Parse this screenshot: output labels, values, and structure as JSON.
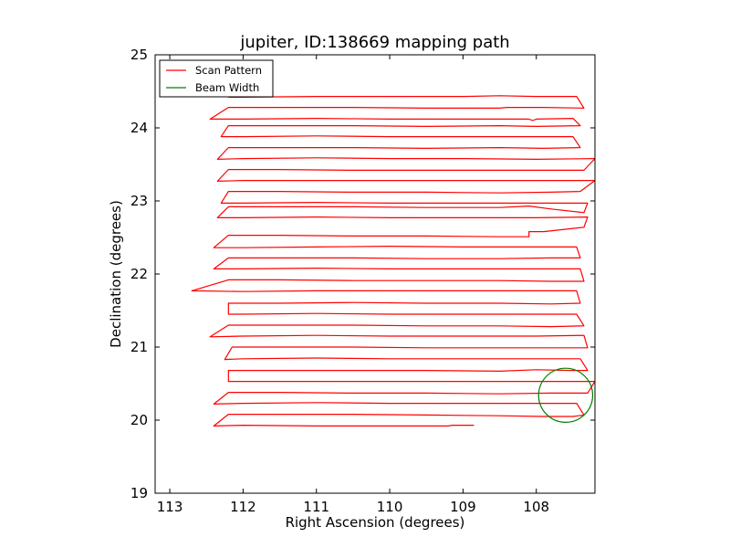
{
  "chart_data": {
    "type": "line",
    "title": "jupiter, ID:138669 mapping path",
    "xlabel": "Right Ascension (degrees)",
    "ylabel": "Declination (degrees)",
    "xlim": [
      113.2,
      107.2
    ],
    "ylim": [
      19,
      25
    ],
    "x_axis_reversed": true,
    "x_ticks": [
      113,
      112,
      111,
      110,
      109,
      108
    ],
    "y_ticks": [
      19,
      20,
      21,
      22,
      23,
      24,
      25
    ],
    "x_tick_labels": [
      "113",
      "112",
      "111",
      "110",
      "109",
      "108"
    ],
    "y_tick_labels": [
      "19",
      "20",
      "21",
      "22",
      "23",
      "24",
      "25"
    ],
    "grid": false,
    "legend_position": "top-left",
    "series": [
      {
        "name": "Scan Pattern",
        "color": "#ff0000",
        "points": [
          [
            108.85,
            19.93
          ],
          [
            109.15,
            19.93
          ],
          [
            109.2,
            19.92
          ],
          [
            109.4,
            19.92
          ],
          [
            110.0,
            19.92
          ],
          [
            111.0,
            19.92
          ],
          [
            112.0,
            19.93
          ],
          [
            112.4,
            19.92
          ],
          [
            112.2,
            20.08
          ],
          [
            111.5,
            20.08
          ],
          [
            110.5,
            20.08
          ],
          [
            109.5,
            20.07
          ],
          [
            108.5,
            20.06
          ],
          [
            107.9,
            20.05
          ],
          [
            107.5,
            20.05
          ],
          [
            107.35,
            20.07
          ],
          [
            107.45,
            20.23
          ],
          [
            108.0,
            20.23
          ],
          [
            109.0,
            20.23
          ],
          [
            110.0,
            20.23
          ],
          [
            111.0,
            20.24
          ],
          [
            112.0,
            20.23
          ],
          [
            112.4,
            20.22
          ],
          [
            112.2,
            20.38
          ],
          [
            111.5,
            20.38
          ],
          [
            110.5,
            20.37
          ],
          [
            109.5,
            20.37
          ],
          [
            108.5,
            20.36
          ],
          [
            107.8,
            20.37
          ],
          [
            107.3,
            20.37
          ],
          [
            107.2,
            20.53
          ],
          [
            108.0,
            20.53
          ],
          [
            109.0,
            20.53
          ],
          [
            110.0,
            20.53
          ],
          [
            111.0,
            20.53
          ],
          [
            112.0,
            20.53
          ],
          [
            112.2,
            20.53
          ],
          [
            112.2,
            20.68
          ],
          [
            111.5,
            20.68
          ],
          [
            110.5,
            20.68
          ],
          [
            109.5,
            20.68
          ],
          [
            108.5,
            20.67
          ],
          [
            108.0,
            20.69
          ],
          [
            107.5,
            20.68
          ],
          [
            107.3,
            20.68
          ],
          [
            107.4,
            20.84
          ],
          [
            108.0,
            20.84
          ],
          [
            109.0,
            20.84
          ],
          [
            110.0,
            20.84
          ],
          [
            111.0,
            20.85
          ],
          [
            112.0,
            20.84
          ],
          [
            112.25,
            20.83
          ],
          [
            112.15,
            21.0
          ],
          [
            111.5,
            21.0
          ],
          [
            110.5,
            21.0
          ],
          [
            109.5,
            20.99
          ],
          [
            108.5,
            20.99
          ],
          [
            108.0,
            20.99
          ],
          [
            107.3,
            20.99
          ],
          [
            107.35,
            21.16
          ],
          [
            108.0,
            21.15
          ],
          [
            109.0,
            21.15
          ],
          [
            110.0,
            21.15
          ],
          [
            111.0,
            21.16
          ],
          [
            112.0,
            21.15
          ],
          [
            112.45,
            21.14
          ],
          [
            112.2,
            21.3
          ],
          [
            111.5,
            21.3
          ],
          [
            110.5,
            21.3
          ],
          [
            109.5,
            21.29
          ],
          [
            108.5,
            21.29
          ],
          [
            107.8,
            21.28
          ],
          [
            107.35,
            21.29
          ],
          [
            107.45,
            21.45
          ],
          [
            108.0,
            21.45
          ],
          [
            109.0,
            21.45
          ],
          [
            110.0,
            21.45
          ],
          [
            111.0,
            21.46
          ],
          [
            112.0,
            21.45
          ],
          [
            112.2,
            21.45
          ],
          [
            112.2,
            21.6
          ],
          [
            111.5,
            21.6
          ],
          [
            110.5,
            21.61
          ],
          [
            109.5,
            21.6
          ],
          [
            108.5,
            21.6
          ],
          [
            107.8,
            21.59
          ],
          [
            107.4,
            21.6
          ],
          [
            107.45,
            21.77
          ],
          [
            108.0,
            21.77
          ],
          [
            109.0,
            21.77
          ],
          [
            110.0,
            21.77
          ],
          [
            111.0,
            21.77
          ],
          [
            112.0,
            21.76
          ],
          [
            112.7,
            21.77
          ],
          [
            112.2,
            21.92
          ],
          [
            111.5,
            21.92
          ],
          [
            110.5,
            21.91
          ],
          [
            109.5,
            21.91
          ],
          [
            108.5,
            21.91
          ],
          [
            107.8,
            21.9
          ],
          [
            107.35,
            21.9
          ],
          [
            107.4,
            22.07
          ],
          [
            108.0,
            22.07
          ],
          [
            109.0,
            22.07
          ],
          [
            110.0,
            22.07
          ],
          [
            111.0,
            22.08
          ],
          [
            112.0,
            22.07
          ],
          [
            112.4,
            22.07
          ],
          [
            112.2,
            22.22
          ],
          [
            111.5,
            22.22
          ],
          [
            110.5,
            22.22
          ],
          [
            109.5,
            22.21
          ],
          [
            108.5,
            22.21
          ],
          [
            107.8,
            22.22
          ],
          [
            107.4,
            22.22
          ],
          [
            107.45,
            22.37
          ],
          [
            108.0,
            22.37
          ],
          [
            109.0,
            22.37
          ],
          [
            110.0,
            22.38
          ],
          [
            111.0,
            22.37
          ],
          [
            112.0,
            22.36
          ],
          [
            112.4,
            22.36
          ],
          [
            112.2,
            22.53
          ],
          [
            111.5,
            22.53
          ],
          [
            110.5,
            22.52
          ],
          [
            109.5,
            22.52
          ],
          [
            108.5,
            22.51
          ],
          [
            108.1,
            22.51
          ],
          [
            108.1,
            22.58
          ],
          [
            107.9,
            22.58
          ],
          [
            107.35,
            22.64
          ],
          [
            107.3,
            22.78
          ],
          [
            108.0,
            22.77
          ],
          [
            109.0,
            22.77
          ],
          [
            110.0,
            22.77
          ],
          [
            111.0,
            22.78
          ],
          [
            112.0,
            22.77
          ],
          [
            112.35,
            22.77
          ],
          [
            112.2,
            22.92
          ],
          [
            111.5,
            22.92
          ],
          [
            110.5,
            22.92
          ],
          [
            109.5,
            22.91
          ],
          [
            108.5,
            22.91
          ],
          [
            108.1,
            22.93
          ],
          [
            107.8,
            22.89
          ],
          [
            107.35,
            22.84
          ],
          [
            107.3,
            22.97
          ],
          [
            108.0,
            22.97
          ],
          [
            109.0,
            22.97
          ],
          [
            110.0,
            22.97
          ],
          [
            111.0,
            22.98
          ],
          [
            112.0,
            22.97
          ],
          [
            112.3,
            22.97
          ],
          [
            112.2,
            23.13
          ],
          [
            111.5,
            23.13
          ],
          [
            110.5,
            23.12
          ],
          [
            109.5,
            23.12
          ],
          [
            108.5,
            23.11
          ],
          [
            107.8,
            23.12
          ],
          [
            107.4,
            23.13
          ],
          [
            107.2,
            23.28
          ],
          [
            108.0,
            23.28
          ],
          [
            109.0,
            23.28
          ],
          [
            110.0,
            23.28
          ],
          [
            111.0,
            23.28
          ],
          [
            112.0,
            23.28
          ],
          [
            112.35,
            23.27
          ],
          [
            112.2,
            23.43
          ],
          [
            111.5,
            23.43
          ],
          [
            110.5,
            23.42
          ],
          [
            109.5,
            23.42
          ],
          [
            108.5,
            23.42
          ],
          [
            107.8,
            23.42
          ],
          [
            107.35,
            23.42
          ],
          [
            107.2,
            23.58
          ],
          [
            108.0,
            23.57
          ],
          [
            109.0,
            23.58
          ],
          [
            110.0,
            23.58
          ],
          [
            111.0,
            23.59
          ],
          [
            112.0,
            23.58
          ],
          [
            112.35,
            23.57
          ],
          [
            112.2,
            23.73
          ],
          [
            111.5,
            23.73
          ],
          [
            110.5,
            23.73
          ],
          [
            109.5,
            23.72
          ],
          [
            108.5,
            23.73
          ],
          [
            107.9,
            23.72
          ],
          [
            107.4,
            23.73
          ],
          [
            107.5,
            23.88
          ],
          [
            108.0,
            23.88
          ],
          [
            109.0,
            23.88
          ],
          [
            110.0,
            23.88
          ],
          [
            111.0,
            23.89
          ],
          [
            112.0,
            23.88
          ],
          [
            112.3,
            23.88
          ],
          [
            112.2,
            24.03
          ],
          [
            111.5,
            24.03
          ],
          [
            110.5,
            24.03
          ],
          [
            109.5,
            24.02
          ],
          [
            108.5,
            24.03
          ],
          [
            108.0,
            24.02
          ],
          [
            107.4,
            24.03
          ],
          [
            107.5,
            24.13
          ],
          [
            108.0,
            24.12
          ],
          [
            108.05,
            24.1
          ],
          [
            108.1,
            24.12
          ],
          [
            109.0,
            24.12
          ],
          [
            110.0,
            24.12
          ],
          [
            111.0,
            24.13
          ],
          [
            112.0,
            24.12
          ],
          [
            112.45,
            24.12
          ],
          [
            112.2,
            24.28
          ],
          [
            111.5,
            24.28
          ],
          [
            110.5,
            24.28
          ],
          [
            109.5,
            24.27
          ],
          [
            108.5,
            24.27
          ],
          [
            108.4,
            24.28
          ],
          [
            107.9,
            24.28
          ],
          [
            107.35,
            24.27
          ],
          [
            107.45,
            24.43
          ],
          [
            108.0,
            24.43
          ],
          [
            108.5,
            24.44
          ],
          [
            109.0,
            24.43
          ],
          [
            110.0,
            24.43
          ],
          [
            111.0,
            24.43
          ],
          [
            112.0,
            24.42
          ],
          [
            112.2,
            24.42
          ]
        ]
      },
      {
        "name": "Beam Width",
        "color": "#008000",
        "shape": "circle",
        "center": [
          107.6,
          20.34
        ],
        "radius_dec_deg": 0.37
      }
    ]
  }
}
